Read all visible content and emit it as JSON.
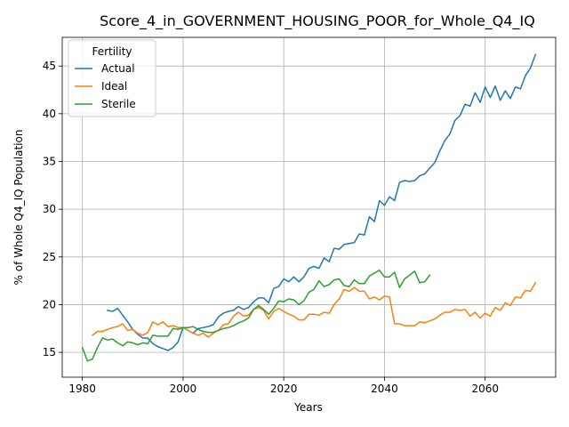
{
  "chart_data": {
    "type": "line",
    "title": "Score_4_in_GOVERNMENT_HOUSING_POOR_for_Whole_Q4_IQ",
    "xlabel": "Years",
    "ylabel": "% of Whole Q4_IQ Population",
    "xlim": [
      1976,
      2074
    ],
    "ylim": [
      12.4,
      48.0
    ],
    "xticks": [
      1980,
      2000,
      2020,
      2040,
      2060
    ],
    "yticks": [
      15,
      20,
      25,
      30,
      35,
      40,
      45
    ],
    "grid": true,
    "legend": {
      "title": "Fertility",
      "placement": "top-left"
    },
    "series": [
      {
        "name": "Actual",
        "color": "#1f77b4",
        "x": [
          1985,
          1986,
          1987,
          1988,
          1989,
          1990,
          1991,
          1992,
          1993,
          1994,
          1995,
          1996,
          1997,
          1998,
          1999,
          2000,
          2001,
          2002,
          2003,
          2004,
          2005,
          2006,
          2007,
          2008,
          2009,
          2010,
          2011,
          2012,
          2013,
          2014,
          2015,
          2016,
          2017,
          2018,
          2019,
          2020,
          2021,
          2022,
          2023,
          2024,
          2025,
          2026,
          2027,
          2028,
          2029,
          2030,
          2031,
          2032,
          2033,
          2034,
          2035,
          2036,
          2037,
          2038,
          2039,
          2040,
          2041,
          2042,
          2043,
          2044,
          2045,
          2046,
          2047,
          2048,
          2049,
          2050,
          2051,
          2052,
          2053,
          2054,
          2055,
          2056,
          2057,
          2058,
          2059,
          2060,
          2061,
          2062,
          2063,
          2064,
          2065,
          2066,
          2067,
          2068,
          2069,
          2070
        ],
        "y": [
          19.4,
          19.3,
          19.6,
          18.9,
          18.2,
          17.4,
          16.9,
          16.5,
          16.5,
          15.9,
          15.6,
          15.4,
          15.2,
          15.5,
          16.1,
          17.6,
          17.3,
          17.0,
          17.5,
          17.6,
          17.7,
          17.9,
          18.7,
          19.1,
          19.3,
          19.4,
          19.8,
          19.5,
          19.7,
          20.3,
          20.7,
          20.7,
          20.2,
          21.7,
          21.9,
          22.7,
          22.4,
          22.9,
          22.4,
          22.9,
          23.8,
          24.0,
          23.8,
          24.9,
          24.5,
          25.9,
          25.8,
          26.3,
          26.4,
          26.5,
          27.4,
          27.3,
          29.2,
          28.7,
          30.9,
          30.4,
          31.3,
          30.9,
          32.8,
          33.0,
          32.9,
          33.0,
          33.5,
          33.7,
          34.3,
          34.9,
          36.1,
          37.2,
          37.9,
          39.3,
          39.8,
          41.0,
          40.8,
          42.2,
          41.2,
          42.8,
          41.7,
          42.9,
          41.4,
          42.4,
          41.6,
          42.8,
          42.6,
          44.0,
          44.8,
          46.2
        ]
      },
      {
        "name": "Ideal",
        "color": "#ff7f0e",
        "x": [
          1982,
          1983,
          1984,
          1985,
          1986,
          1987,
          1988,
          1989,
          1990,
          1991,
          1992,
          1993,
          1994,
          1995,
          1996,
          1997,
          1998,
          1999,
          2000,
          2001,
          2002,
          2003,
          2004,
          2005,
          2006,
          2007,
          2008,
          2009,
          2010,
          2011,
          2012,
          2013,
          2014,
          2015,
          2016,
          2017,
          2018,
          2019,
          2020,
          2021,
          2022,
          2023,
          2024,
          2025,
          2026,
          2027,
          2028,
          2029,
          2030,
          2031,
          2032,
          2033,
          2034,
          2035,
          2036,
          2037,
          2038,
          2039,
          2040,
          2041,
          2042,
          2043,
          2044,
          2045,
          2046,
          2047,
          2048,
          2049,
          2050,
          2051,
          2052,
          2053,
          2054,
          2055,
          2056,
          2057,
          2058,
          2059,
          2060,
          2061,
          2062,
          2063,
          2064,
          2065,
          2066,
          2067,
          2068,
          2069,
          2070
        ],
        "y": [
          16.8,
          17.2,
          17.2,
          17.4,
          17.6,
          17.7,
          18.0,
          17.3,
          17.4,
          17.0,
          16.8,
          17.1,
          18.2,
          17.9,
          18.2,
          17.7,
          17.8,
          17.6,
          17.6,
          17.3,
          17.0,
          16.8,
          17.0,
          16.6,
          17.0,
          17.3,
          17.9,
          18.0,
          18.8,
          19.2,
          18.8,
          18.9,
          19.5,
          19.7,
          19.4,
          18.5,
          19.3,
          19.6,
          19.3,
          19.0,
          18.8,
          18.4,
          18.4,
          19.0,
          19.0,
          18.9,
          19.2,
          19.1,
          20.0,
          20.6,
          21.6,
          21.4,
          21.8,
          21.4,
          21.4,
          20.6,
          20.8,
          20.5,
          20.9,
          20.8,
          18.0,
          18.0,
          17.8,
          17.8,
          17.8,
          18.2,
          18.1,
          18.3,
          18.5,
          18.9,
          19.2,
          19.2,
          19.5,
          19.4,
          19.5,
          18.8,
          19.2,
          18.6,
          19.1,
          18.8,
          19.7,
          19.4,
          20.2,
          19.9,
          20.8,
          20.7,
          21.5,
          21.4,
          22.3
        ]
      },
      {
        "name": "Sterile",
        "color": "#2ca02c",
        "x": [
          1980,
          1981,
          1982,
          1983,
          1984,
          1985,
          1986,
          1987,
          1988,
          1989,
          1990,
          1991,
          1992,
          1993,
          1994,
          1995,
          1996,
          1997,
          1998,
          1999,
          2000,
          2001,
          2002,
          2003,
          2004,
          2005,
          2006,
          2007,
          2008,
          2009,
          2010,
          2011,
          2012,
          2013,
          2014,
          2015,
          2016,
          2017,
          2018,
          2019,
          2020,
          2021,
          2022,
          2023,
          2024,
          2025,
          2026,
          2027,
          2028,
          2029,
          2030,
          2031,
          2032,
          2033,
          2034,
          2035,
          2036,
          2037,
          2038,
          2039,
          2040,
          2041,
          2042,
          2043,
          2044,
          2045,
          2046,
          2047,
          2048,
          2049
        ],
        "y": [
          15.5,
          14.1,
          14.3,
          15.5,
          16.5,
          16.3,
          16.4,
          16.0,
          15.7,
          16.1,
          16.0,
          15.8,
          16.0,
          15.9,
          16.8,
          16.7,
          16.7,
          16.7,
          17.5,
          17.4,
          17.6,
          17.6,
          17.7,
          17.4,
          17.2,
          17.1,
          17.1,
          17.3,
          17.5,
          17.6,
          17.8,
          18.1,
          18.3,
          18.6,
          19.5,
          19.9,
          19.5,
          19.0,
          19.6,
          20.4,
          20.3,
          20.6,
          20.5,
          20.0,
          20.4,
          21.3,
          21.6,
          22.5,
          21.9,
          22.1,
          22.6,
          22.7,
          22.0,
          21.9,
          22.6,
          22.2,
          22.2,
          23.0,
          23.3,
          23.6,
          22.9,
          22.9,
          23.4,
          21.8,
          22.7,
          23.1,
          23.5,
          22.3,
          22.4,
          23.1
        ]
      }
    ]
  }
}
